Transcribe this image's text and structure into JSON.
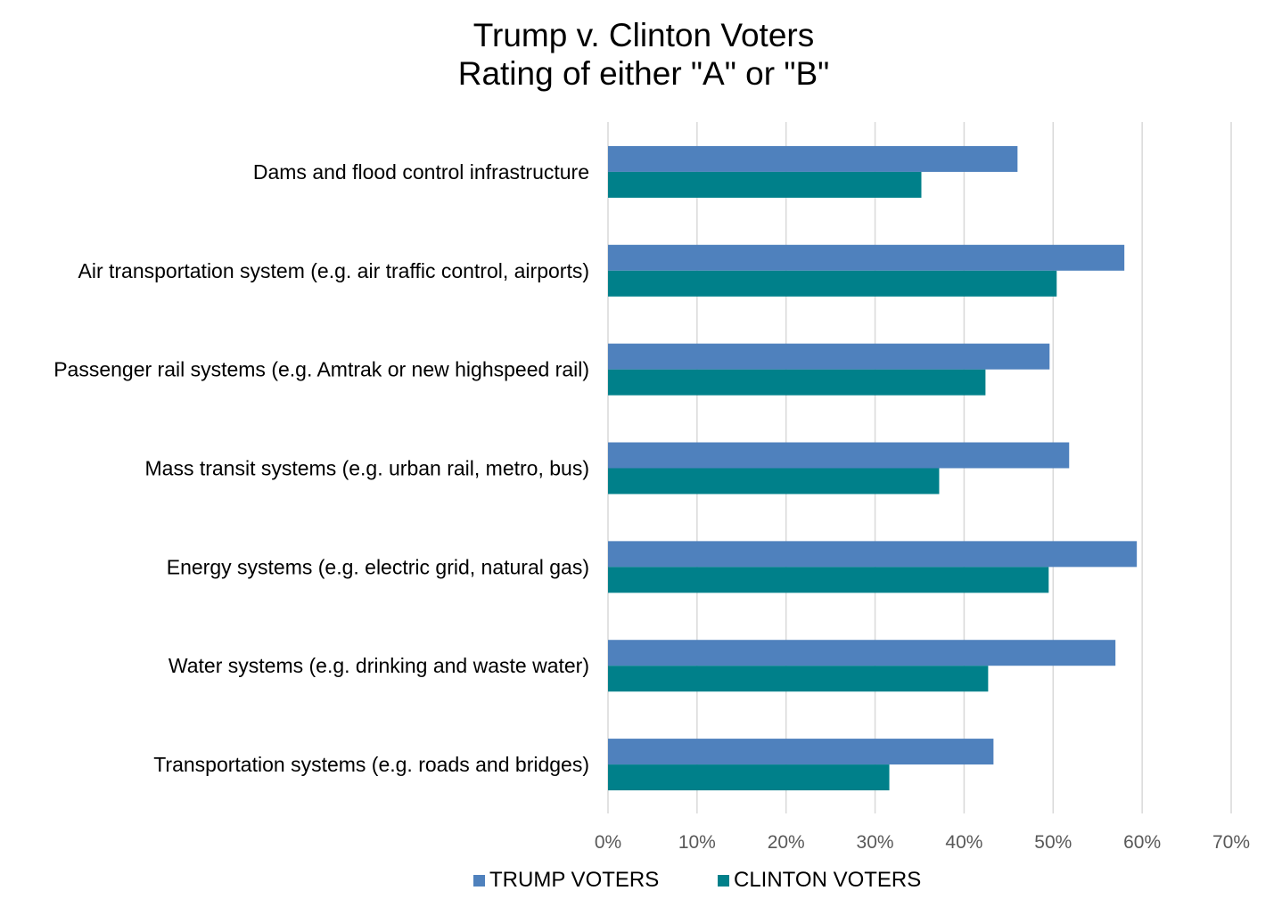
{
  "colors": {
    "trump": "#4f81bd",
    "clinton": "#00808a",
    "grid": "#d9d9d9",
    "tick_text": "#595959"
  },
  "chart_data": {
    "type": "bar",
    "orientation": "horizontal",
    "title": "Trump v. Clinton Voters",
    "subtitle": "Rating of either \"A\" or \"B\"",
    "categories": [
      "Dams and flood control infrastructure",
      "Air transportation system (e.g. air traffic control, airports)",
      "Passenger rail systems (e.g. Amtrak or new highspeed rail)",
      "Mass transit systems (e.g. urban rail, metro, bus)",
      "Energy systems (e.g. electric grid, natural gas)",
      "Water systems (e.g. drinking and waste water)",
      "Transportation systems (e.g. roads and bridges)"
    ],
    "series": [
      {
        "name": "TRUMP VOTERS",
        "values": [
          46,
          58,
          49.6,
          51.8,
          59.4,
          57,
          43.3
        ]
      },
      {
        "name": "CLINTON VOTERS",
        "values": [
          35.2,
          50.4,
          42.4,
          37.2,
          49.5,
          42.7,
          31.6
        ]
      }
    ],
    "xlim": [
      0,
      70
    ],
    "xticks": [
      "0%",
      "10%",
      "20%",
      "30%",
      "40%",
      "50%",
      "60%",
      "70%"
    ],
    "grid": true,
    "legend_position": "bottom"
  }
}
